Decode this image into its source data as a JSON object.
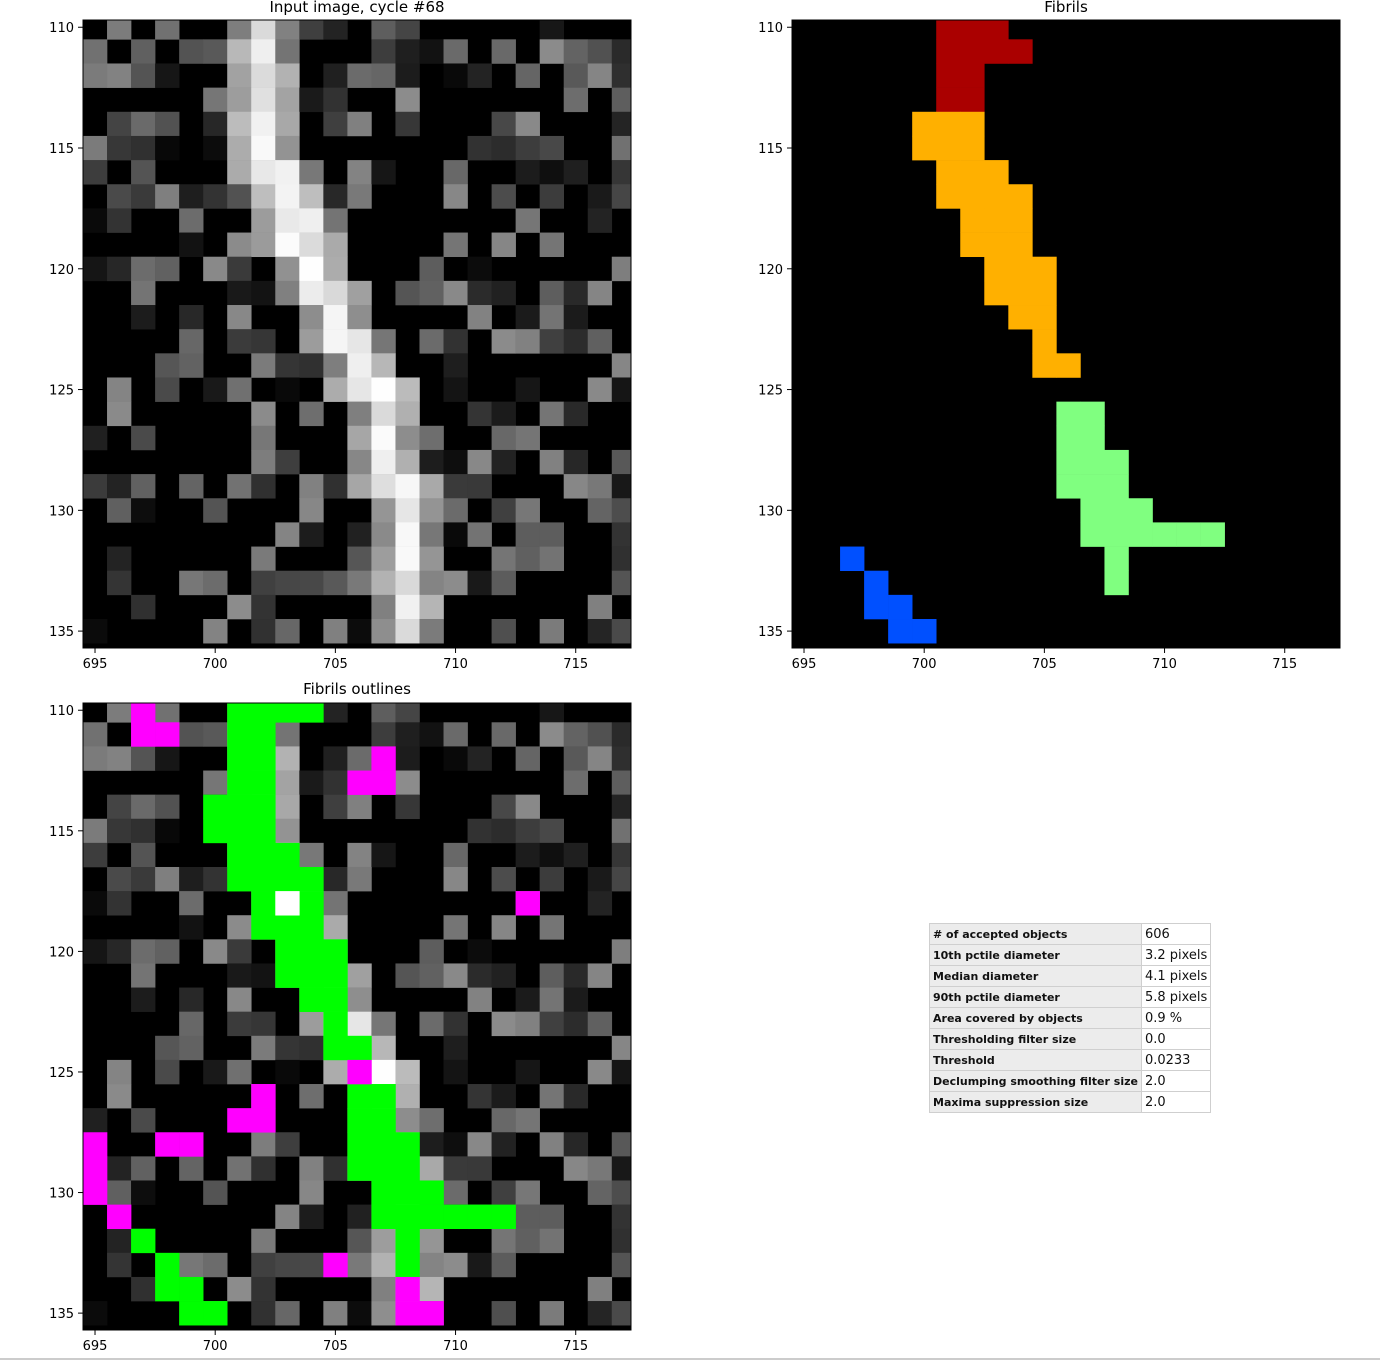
{
  "panels": [
    {
      "title": "Input image, cycle #68",
      "x_ticks": [
        "695",
        "700",
        "705",
        "710",
        "715"
      ],
      "y_ticks": [
        "110",
        "115",
        "120",
        "125",
        "130",
        "135"
      ],
      "x_range": [
        694.5,
        717.3
      ],
      "y_range": [
        109.7,
        135.7
      ],
      "content": "grayscale"
    },
    {
      "title": "Fibrils",
      "x_ticks": [
        "695",
        "700",
        "705",
        "710",
        "715"
      ],
      "y_ticks": [
        "110",
        "115",
        "120",
        "125",
        "130",
        "135"
      ],
      "x_range": [
        694.5,
        717.3
      ],
      "y_range": [
        109.7,
        135.7
      ],
      "content": "labels"
    },
    {
      "title": "Fibrils outlines",
      "x_ticks": [
        "695",
        "700",
        "705",
        "710",
        "715"
      ],
      "y_ticks": [
        "110",
        "115",
        "120",
        "125",
        "130",
        "135"
      ],
      "x_range": [
        694.5,
        717.3
      ],
      "y_range": [
        109.7,
        135.7
      ],
      "content": "outlines"
    }
  ],
  "label_colors": {
    "red": "#aa0000",
    "orange": "#ffb000",
    "green": "#80ff80",
    "blue": "#0050ff"
  },
  "outline_colors": {
    "accepted": "#00ff00",
    "rejected": "#ff00ff"
  },
  "stats": [
    {
      "key": "# of accepted objects",
      "value": "606"
    },
    {
      "key": "10th pctile diameter",
      "value": "3.2 pixels"
    },
    {
      "key": "Median diameter",
      "value": "4.1 pixels"
    },
    {
      "key": "90th pctile diameter",
      "value": "5.8 pixels"
    },
    {
      "key": "Area covered by objects",
      "value": "0.9 %"
    },
    {
      "key": "Thresholding filter size",
      "value": "0.0"
    },
    {
      "key": "Threshold",
      "value": "0.0233"
    },
    {
      "key": "Declumping smoothing filter size",
      "value": "2.0"
    },
    {
      "key": "Maxima suppression size",
      "value": "2.0"
    }
  ]
}
